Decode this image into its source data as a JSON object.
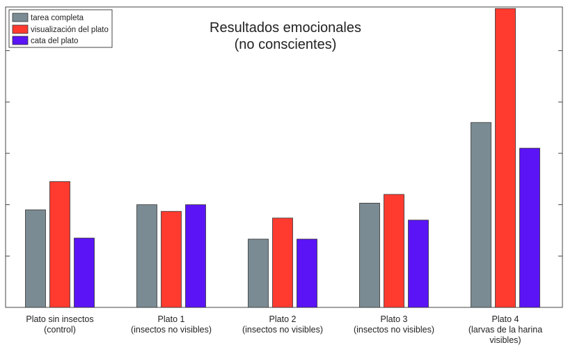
{
  "chart_data": {
    "type": "bar",
    "title_lines": [
      "Resultados emocionales",
      "(no conscientes)"
    ],
    "categories": [
      [
        "Plato sin insectos",
        "(control)"
      ],
      [
        "Plato 1",
        "(insectos no visibles)"
      ],
      [
        "Plato 2",
        "(insectos no visibles)"
      ],
      [
        "Plato 3",
        "(insectos no visibles)"
      ],
      [
        "Plato 4",
        "(larvas de la harina",
        "visibles)"
      ]
    ],
    "series": [
      {
        "name": "tarea completa",
        "color": "#7a8b93",
        "values": [
          1.9,
          2.0,
          1.33,
          2.03,
          3.6
        ]
      },
      {
        "name": "visualización del plato",
        "color": "#ff3b30",
        "values": [
          2.45,
          1.87,
          1.74,
          2.2,
          5.82
        ]
      },
      {
        "name": "cata del plato",
        "color": "#5a14f5",
        "values": [
          1.35,
          2.0,
          1.33,
          1.7,
          3.1
        ]
      }
    ],
    "ylim": [
      0,
      5.85
    ],
    "yticks": [
      1,
      2,
      3,
      4,
      5
    ],
    "ytick_labels_visible": false,
    "grid": false,
    "legend_position": "top-left"
  }
}
